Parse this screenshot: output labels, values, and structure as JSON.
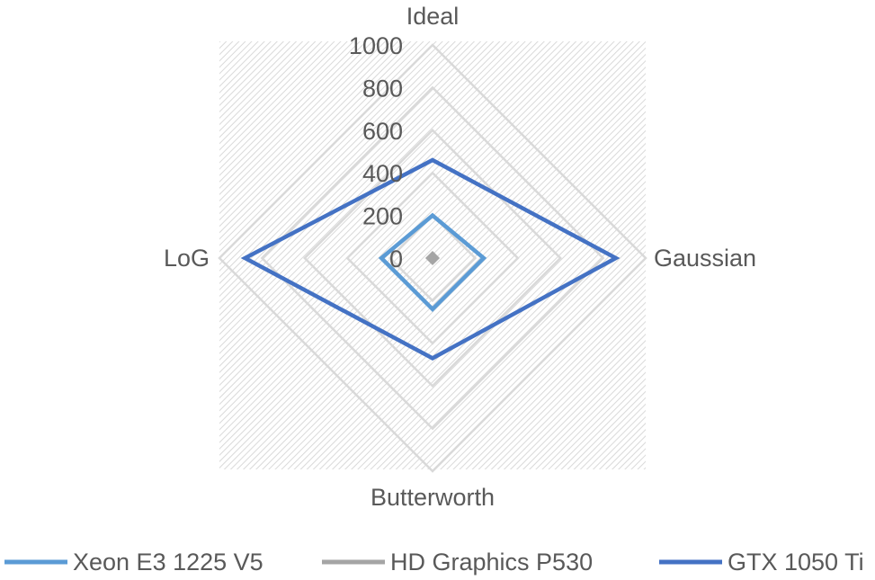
{
  "chart_data": {
    "type": "radar",
    "title": "",
    "axes": [
      "Ideal",
      "Gaussian",
      "Butterworth",
      "LoG"
    ],
    "radial_ticks": [
      "0",
      "200",
      "400",
      "600",
      "800",
      "1000"
    ],
    "rlim": [
      0,
      1000
    ],
    "grid": true,
    "legend_position": "bottom",
    "series": [
      {
        "name": "Xeon E3 1225 V5",
        "color": "#5b9bd5",
        "values": [
          200,
          240,
          240,
          240
        ]
      },
      {
        "name": "HD Graphics P530",
        "color": "#a5a5a5",
        "values": [
          10,
          10,
          10,
          10
        ]
      },
      {
        "name": "GTX 1050 Ti",
        "color": "#4472c4",
        "values": [
          460,
          860,
          470,
          880
        ]
      }
    ]
  }
}
